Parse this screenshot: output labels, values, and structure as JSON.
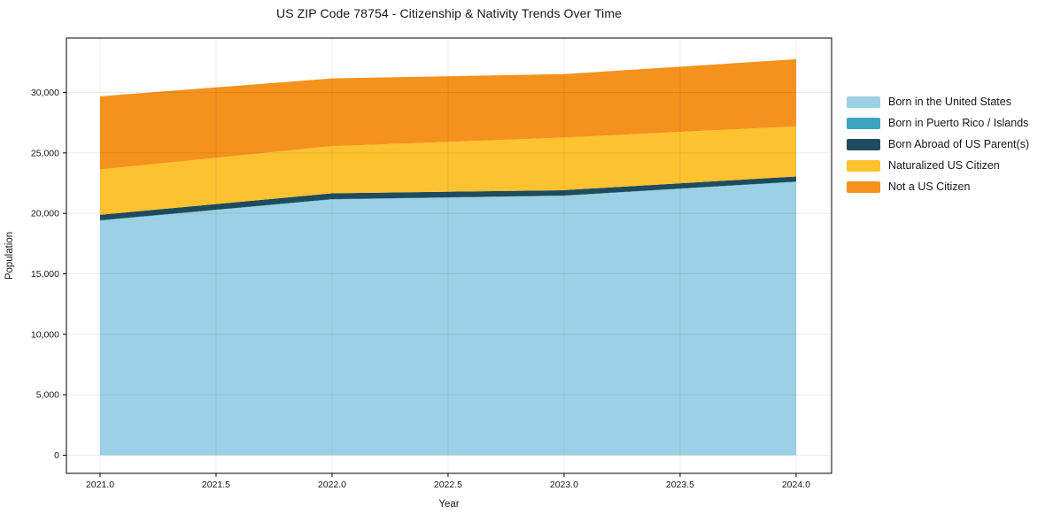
{
  "figure": {
    "background": "#ffffff"
  },
  "chart_data": {
    "type": "area",
    "stacked": true,
    "title": "US ZIP Code 78754 - Citizenship & Nativity Trends Over Time",
    "xlabel": "Year",
    "ylabel": "Population",
    "x": [
      2021,
      2022,
      2023,
      2024
    ],
    "series": [
      {
        "key": "born-in-united-states",
        "name": "Born in the United States",
        "color": "#9CD1E5",
        "values": [
          19400,
          21150,
          21450,
          22600
        ]
      },
      {
        "key": "born-in-puerto-rico-islands",
        "name": "Born in Puerto Rico / Islands",
        "color": "#3AA6BD",
        "values": [
          30,
          30,
          30,
          30
        ]
      },
      {
        "key": "born-abroad-us-parents",
        "name": "Born Abroad of US Parent(s)",
        "color": "#1F4B5E",
        "values": [
          450,
          480,
          440,
          420
        ]
      },
      {
        "key": "naturalized-us-citizen",
        "name": "Naturalized US Citizen",
        "color": "#FCC230",
        "values": [
          3750,
          3900,
          4350,
          4150
        ]
      },
      {
        "key": "not-a-us-citizen",
        "name": "Not a US Citizen",
        "color": "#F5921E",
        "values": [
          6050,
          5600,
          5250,
          5550
        ]
      }
    ],
    "totals": [
      29680,
      31160,
      31520,
      32750
    ],
    "xlim": [
      2020.855,
      2024.153
    ],
    "ylim": [
      -1500,
      34500
    ],
    "xticks": {
      "values": [
        2021.0,
        2021.5,
        2022.0,
        2022.5,
        2023.0,
        2023.5,
        2024.0
      ],
      "labels": [
        "2021.0",
        "2021.5",
        "2022.0",
        "2022.5",
        "2023.0",
        "2023.5",
        "2024.0"
      ]
    },
    "yticks": {
      "values": [
        0,
        5000,
        10000,
        15000,
        20000,
        25000,
        30000
      ],
      "labels": [
        "0",
        "5,000",
        "10,000",
        "15,000",
        "20,000",
        "25,000",
        "30,000"
      ]
    },
    "grid": true,
    "legend_position": "right"
  },
  "style": {
    "grid_color": "rgba(0,0,0,0.08)",
    "spine_color": "#000000",
    "tick_color": "#000000",
    "text_color": "#15181c"
  }
}
